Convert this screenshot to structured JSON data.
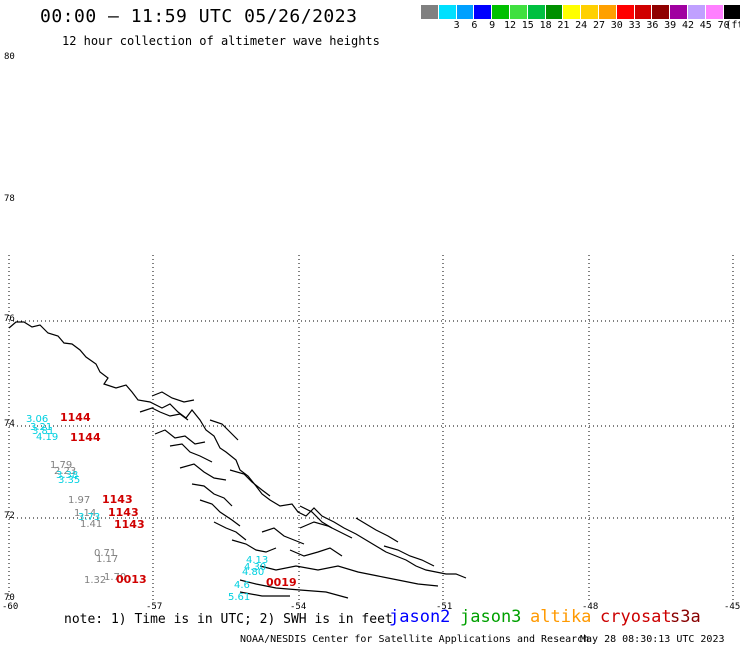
{
  "header": {
    "title": "00:00 — 11:59 UTC 05/26/2023",
    "subtitle": "12 hour collection of altimeter wave heights"
  },
  "colorbar": {
    "unit_label": "(ft)",
    "segments": [
      {
        "color": "#808080",
        "tick": ""
      },
      {
        "color": "#00e0ff",
        "tick": "3"
      },
      {
        "color": "#00a0ff",
        "tick": "6"
      },
      {
        "color": "#0000ff",
        "tick": "9"
      },
      {
        "color": "#00c000",
        "tick": "12"
      },
      {
        "color": "#40e040",
        "tick": "15"
      },
      {
        "color": "#00c040",
        "tick": "18"
      },
      {
        "color": "#009000",
        "tick": "21"
      },
      {
        "color": "#ffff00",
        "tick": "24"
      },
      {
        "color": "#ffd000",
        "tick": "27"
      },
      {
        "color": "#ffa000",
        "tick": "30"
      },
      {
        "color": "#ff0000",
        "tick": "33"
      },
      {
        "color": "#d00000",
        "tick": "36"
      },
      {
        "color": "#900000",
        "tick": "39"
      },
      {
        "color": "#a000a0",
        "tick": "42"
      },
      {
        "color": "#c0a0ff",
        "tick": "45"
      },
      {
        "color": "#ff80ff",
        "tick": "70"
      },
      {
        "color": "#000000",
        "tick": ""
      }
    ]
  },
  "map": {
    "lat_labels": [
      "80",
      "78",
      "76",
      "74",
      "72",
      "70"
    ],
    "lon_labels": [
      "-60",
      "-57",
      "-54",
      "-51",
      "-48",
      "-45"
    ],
    "observations": [
      {
        "v": "3.06",
        "color": "#00d0e0"
      },
      {
        "v": "3.21",
        "color": "#00d0e0"
      },
      {
        "v": "3.81",
        "color": "#00d0e0"
      },
      {
        "v": "4.19",
        "color": "#00d0e0"
      },
      {
        "v": "1.79",
        "color": "#808080"
      },
      {
        "v": "2.23",
        "color": "#808080"
      },
      {
        "v": "3.38",
        "color": "#00d0e0"
      },
      {
        "v": "3.35",
        "color": "#00d0e0"
      },
      {
        "v": "1.97",
        "color": "#808080"
      },
      {
        "v": "1.14",
        "color": "#808080"
      },
      {
        "v": "3.73",
        "color": "#00d0e0"
      },
      {
        "v": "1.41",
        "color": "#808080"
      },
      {
        "v": "0.71",
        "color": "#808080"
      },
      {
        "v": "1.17",
        "color": "#808080"
      },
      {
        "v": "1.32",
        "color": "#808080"
      },
      {
        "v": "1.70",
        "color": "#808080"
      },
      {
        "v": "4.13",
        "color": "#00d0e0"
      },
      {
        "v": "4.30",
        "color": "#00d0e0"
      },
      {
        "v": "4.80",
        "color": "#00d0e0"
      },
      {
        "v": "4.6",
        "color": "#00d0e0"
      },
      {
        "v": "5.61",
        "color": "#00d0e0"
      }
    ],
    "pass_times": [
      "1144",
      "1144",
      "1143",
      "1143",
      "1143",
      "0013",
      "0019"
    ]
  },
  "legend": {
    "note": "note: 1) Time is in UTC; 2) SWH is in feet",
    "satellites": [
      {
        "name": "jason2",
        "color": "#0000ff"
      },
      {
        "name": "jason3",
        "color": "#00a000"
      },
      {
        "name": "altika",
        "color": "#ff9900"
      },
      {
        "name": "cryosat",
        "color": "#cc0000"
      },
      {
        "name": "s3a",
        "color": "#880000"
      }
    ]
  },
  "footer": {
    "credit": "NOAA/NESDIS Center for Satellite Applications and Research",
    "timestamp": "May 28 08:30:13 UTC 2023"
  }
}
